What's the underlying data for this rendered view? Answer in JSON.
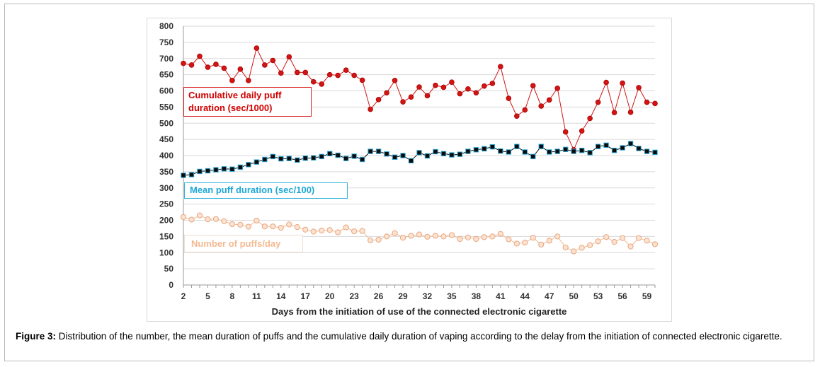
{
  "chart_data": {
    "type": "line",
    "xlabel": "Days  from the initiation of use of the connected electronic cigarette",
    "ylabel": "",
    "ylim": [
      0,
      800
    ],
    "yticks": [
      0,
      50,
      100,
      150,
      200,
      250,
      300,
      350,
      400,
      450,
      500,
      550,
      600,
      650,
      700,
      750,
      800
    ],
    "x": [
      2,
      3,
      4,
      5,
      6,
      7,
      8,
      9,
      10,
      11,
      12,
      13,
      14,
      15,
      16,
      17,
      18,
      19,
      20,
      21,
      22,
      23,
      24,
      25,
      26,
      27,
      28,
      29,
      30,
      31,
      32,
      33,
      34,
      35,
      36,
      37,
      38,
      39,
      40,
      41,
      42,
      43,
      44,
      45,
      46,
      47,
      48,
      49,
      50,
      51,
      52,
      53,
      54,
      55,
      56,
      57,
      58,
      59,
      60
    ],
    "xticks": [
      2,
      5,
      8,
      11,
      14,
      17,
      20,
      23,
      26,
      29,
      32,
      35,
      38,
      41,
      44,
      47,
      50,
      53,
      56,
      59
    ],
    "grid": true,
    "series": [
      {
        "name": "Cumulative daily puff duration (sec/1000)",
        "color": "#d01515",
        "marker": "circle",
        "values": [
          685,
          680,
          707,
          673,
          682,
          670,
          632,
          667,
          632,
          732,
          680,
          694,
          655,
          705,
          657,
          657,
          628,
          621,
          650,
          648,
          664,
          648,
          633,
          543,
          573,
          594,
          632,
          566,
          581,
          612,
          585,
          617,
          611,
          627,
          591,
          606,
          594,
          615,
          623,
          675,
          577,
          522,
          541,
          616,
          553,
          572,
          608,
          473,
          418,
          476,
          515,
          565,
          626,
          533,
          624,
          534,
          610,
          565,
          561
        ]
      },
      {
        "name": "Mean puff duration (sec/100)",
        "color": "#0a0a0a",
        "marker": "square",
        "marker_edge": "#2aa7d6",
        "values": [
          339,
          341,
          351,
          353,
          356,
          359,
          358,
          364,
          372,
          380,
          388,
          397,
          390,
          391,
          386,
          392,
          393,
          397,
          406,
          401,
          391,
          398,
          388,
          413,
          413,
          405,
          395,
          400,
          384,
          409,
          399,
          412,
          406,
          402,
          404,
          413,
          418,
          421,
          427,
          414,
          411,
          428,
          411,
          397,
          428,
          411,
          413,
          419,
          413,
          416,
          409,
          428,
          432,
          416,
          424,
          437,
          422,
          413,
          410
        ]
      },
      {
        "name": "Number of puffs/day",
        "color": "#f1b992",
        "marker": "circle-open",
        "values": [
          210,
          202,
          215,
          203,
          204,
          197,
          188,
          186,
          180,
          199,
          181,
          181,
          177,
          187,
          179,
          171,
          165,
          168,
          170,
          163,
          178,
          166,
          167,
          138,
          140,
          150,
          160,
          146,
          152,
          156,
          149,
          152,
          150,
          154,
          142,
          147,
          142,
          148,
          150,
          158,
          141,
          128,
          131,
          146,
          125,
          137,
          150,
          116,
          104,
          115,
          123,
          135,
          148,
          133,
          145,
          119,
          145,
          137,
          126
        ]
      }
    ]
  },
  "legends": {
    "cumulative_line1": "Cumulative daily puff",
    "cumulative_line2": "duration (sec/1000)",
    "mean": "Mean puff duration (sec/100)",
    "number": "Number of puffs/day"
  },
  "caption": {
    "label": "Figure 3:",
    "text": " Distribution of the number, the mean duration of puffs and the cumulative daily duration of vaping according to the delay from the initiation of connected electronic cigarette."
  }
}
